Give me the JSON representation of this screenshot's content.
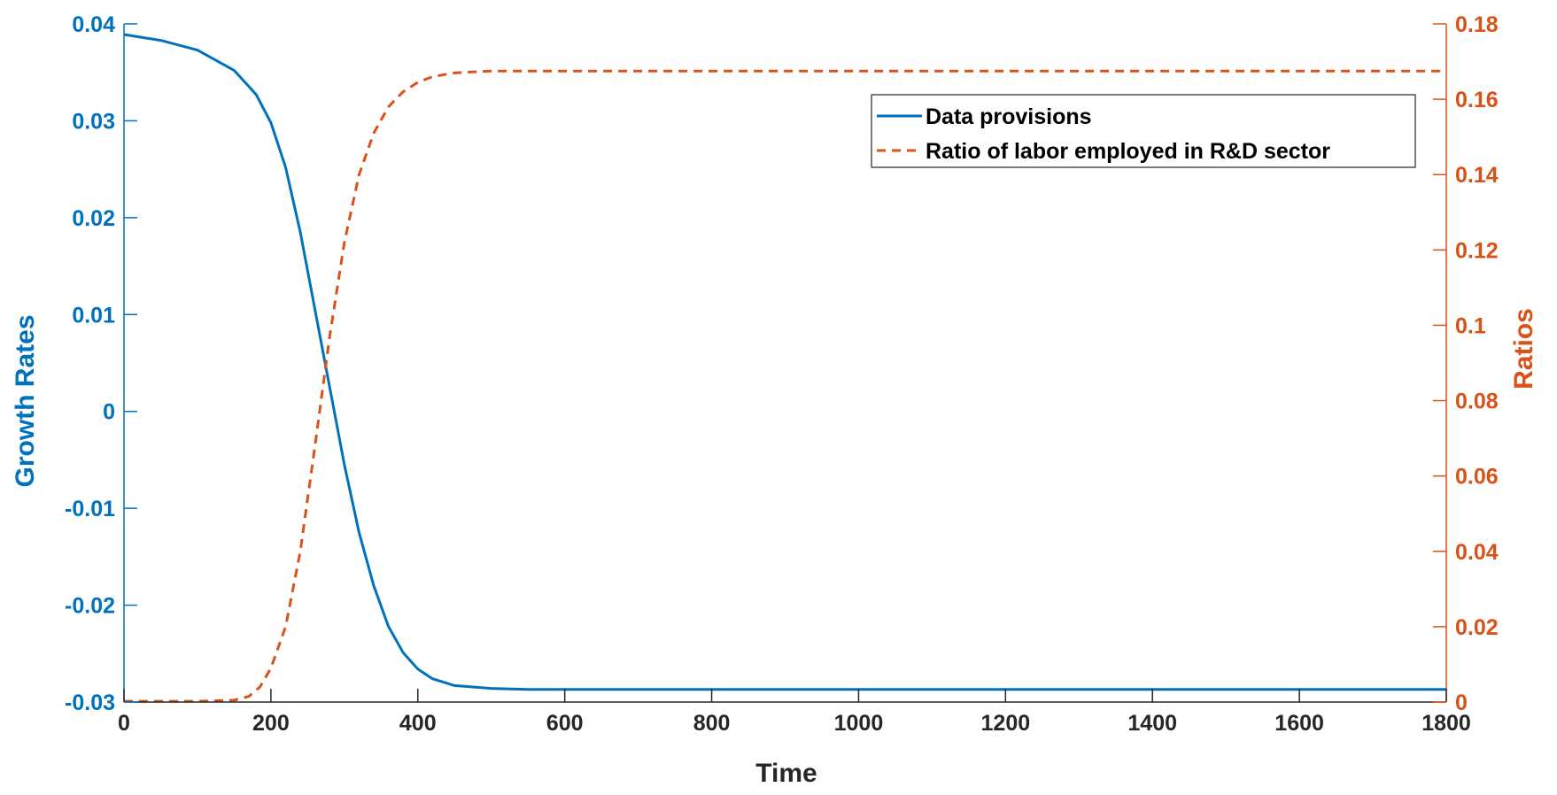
{
  "chart_data": {
    "type": "line",
    "xlabel": "Time",
    "ylabel_left": "Growth Rates",
    "ylabel_right": "Ratios",
    "xlim": [
      0,
      1800
    ],
    "ylim_left": [
      -0.03,
      0.04
    ],
    "ylim_right": [
      0,
      0.18
    ],
    "x_ticks": [
      "0",
      "200",
      "400",
      "600",
      "800",
      "1000",
      "1200",
      "1400",
      "1600",
      "1800"
    ],
    "y_ticks_left": [
      "-0.03",
      "-0.02",
      "-0.01",
      "0",
      "0.01",
      "0.02",
      "0.03",
      "0.04"
    ],
    "y_ticks_right": [
      "0",
      "0.02",
      "0.04",
      "0.06",
      "0.08",
      "0.1",
      "0.12",
      "0.14",
      "0.16",
      "0.18"
    ],
    "grid": false,
    "legend": "top-right",
    "series": [
      {
        "name": "Data provisions",
        "axis": "left",
        "style": "solid",
        "color": "#0072BD",
        "x": [
          0,
          50,
          100,
          150,
          180,
          200,
          220,
          240,
          260,
          280,
          300,
          320,
          340,
          360,
          380,
          400,
          420,
          450,
          500,
          550,
          600,
          800,
          1000,
          1200,
          1400,
          1600,
          1800
        ],
        "values": [
          0.0389,
          0.0383,
          0.0373,
          0.0352,
          0.0327,
          0.0298,
          0.0252,
          0.0185,
          0.0105,
          0.0025,
          -0.0055,
          -0.0125,
          -0.018,
          -0.0222,
          -0.0249,
          -0.0266,
          -0.0276,
          -0.0283,
          -0.0286,
          -0.0287,
          -0.0287,
          -0.0287,
          -0.0287,
          -0.0287,
          -0.0287,
          -0.0287,
          -0.0287
        ]
      },
      {
        "name": "Ratio of labor employed in R&D sector",
        "axis": "right",
        "style": "dashed",
        "color": "#D95319",
        "x": [
          0,
          100,
          150,
          170,
          185,
          200,
          220,
          240,
          260,
          280,
          300,
          320,
          340,
          360,
          380,
          400,
          420,
          450,
          500,
          550,
          600,
          800,
          1000,
          1200,
          1400,
          1600,
          1800
        ],
        "values": [
          0.0002,
          0.0002,
          0.0005,
          0.0015,
          0.004,
          0.009,
          0.02,
          0.04,
          0.068,
          0.097,
          0.122,
          0.14,
          0.151,
          0.158,
          0.162,
          0.1645,
          0.166,
          0.167,
          0.1675,
          0.1675,
          0.1675,
          0.1675,
          0.1675,
          0.1675,
          0.1675,
          0.1675,
          0.1675
        ]
      }
    ]
  }
}
